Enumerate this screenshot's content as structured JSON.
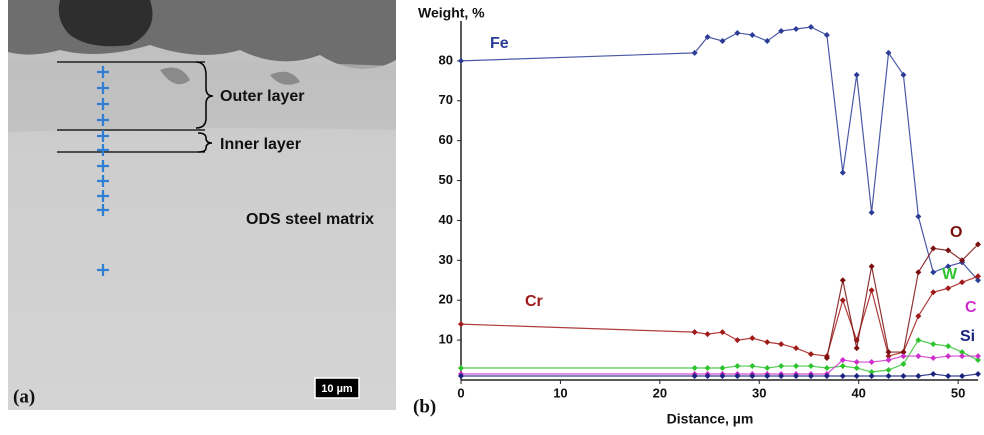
{
  "panel_a": {
    "label": "(a)",
    "annotations": [
      "Outer layer",
      "Inner layer",
      "ODS steel matrix"
    ],
    "scale_bar": "10 µm"
  },
  "chart_data": {
    "type": "line",
    "panel_label": "(b)",
    "y_label": "Weight, %",
    "x_label": "Distance, µm",
    "x": [
      0,
      23.5,
      24.8,
      26.3,
      27.8,
      29.3,
      30.8,
      32.2,
      33.7,
      35.2,
      36.8,
      38.4,
      39.8,
      41.3,
      43,
      44.5,
      46,
      47.5,
      49,
      50.4,
      52
    ],
    "series": [
      {
        "name": "Fe",
        "color": "#2b3d96",
        "values": [
          80,
          82,
          86,
          85,
          87,
          86.5,
          85,
          87.5,
          88,
          88.5,
          86.5,
          52,
          76.5,
          42,
          82,
          76.5,
          41,
          27,
          28.5,
          29.5,
          25
        ]
      },
      {
        "name": "Cr",
        "color": "#a11a1a",
        "values": [
          14,
          12,
          11.5,
          12,
          10,
          10.5,
          9.5,
          9,
          8,
          6.5,
          6,
          20,
          10,
          22.5,
          6,
          7,
          16,
          22,
          23,
          24.5,
          26
        ]
      },
      {
        "name": "O",
        "color": "#7a0f0f",
        "values": [
          null,
          null,
          null,
          null,
          null,
          null,
          null,
          null,
          null,
          null,
          5.5,
          25,
          8,
          28.5,
          7,
          7,
          27,
          33,
          32.5,
          30,
          34
        ]
      },
      {
        "name": "W",
        "color": "#2fc42f",
        "values": [
          3,
          3,
          3,
          3,
          3.5,
          3.5,
          3,
          3.5,
          3.5,
          3.5,
          3,
          3.5,
          3,
          2,
          2.5,
          4,
          10,
          9,
          8.5,
          7,
          5
        ]
      },
      {
        "name": "C",
        "color": "#cc2fcc",
        "values": [
          1.5,
          1.5,
          1.5,
          1.5,
          1.5,
          1.5,
          1.5,
          1.5,
          1.5,
          1.5,
          1.5,
          5,
          4.5,
          4.5,
          5,
          6,
          6,
          5.5,
          6,
          6,
          6
        ]
      },
      {
        "name": "Si",
        "color": "#1a237e",
        "values": [
          1,
          1,
          1,
          1,
          1,
          1,
          1,
          1,
          1,
          1,
          1,
          1,
          1,
          1,
          1,
          1,
          1,
          1.5,
          1,
          1,
          1.5
        ]
      }
    ],
    "xlim": [
      0,
      52
    ],
    "ylim": [
      0,
      90
    ],
    "xticks": [
      0,
      10,
      20,
      30,
      40,
      50
    ],
    "yticks": [
      10,
      20,
      30,
      40,
      50,
      60,
      70,
      80
    ]
  }
}
